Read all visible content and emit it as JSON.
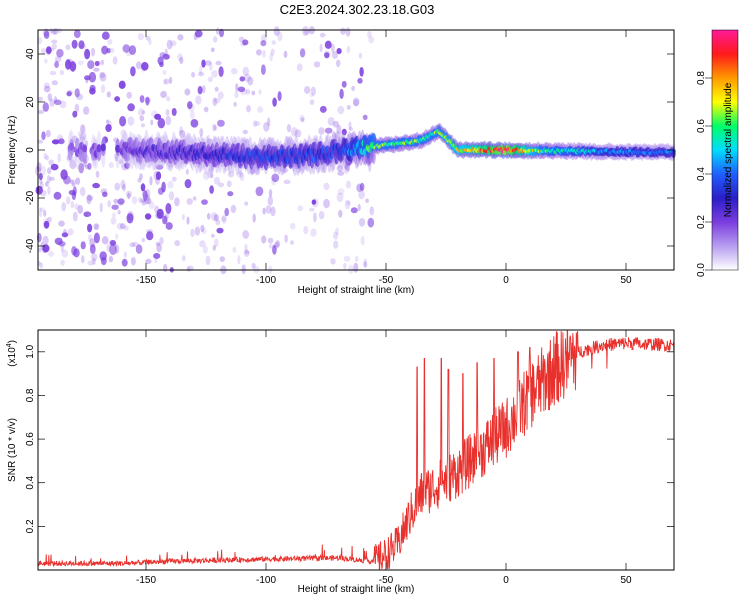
{
  "title": "C2E3.2024.302.23.18.G03",
  "colors": {
    "snr_line": "#e8302c",
    "background_dots": "#7a3dde",
    "colormap": [
      "#ffffff",
      "#b79df0",
      "#7a3dde",
      "#2a1ec8",
      "#1f5fff",
      "#00ddff",
      "#00ff66",
      "#ffff00",
      "#ff9900",
      "#ff1a1a",
      "#ff1a9a"
    ]
  },
  "chart_data": [
    {
      "type": "heatmap",
      "xlabel": "Height of straight line (km)",
      "ylabel": "Frequency (Hz)",
      "xlim": [
        -195,
        70
      ],
      "ylim": [
        -50,
        50
      ],
      "x_ticks": [
        -150,
        -100,
        -50,
        0,
        50
      ],
      "y_ticks": [
        -40,
        -20,
        0,
        20,
        40
      ],
      "colorbar": {
        "label": "Normalized spectral amplitude",
        "range": [
          0,
          1
        ],
        "ticks": [
          "0.0",
          "0.2",
          "0.4",
          "0.6",
          "0.8"
        ],
        "tick_values": [
          0.0,
          0.2,
          0.4,
          0.6,
          0.8
        ]
      },
      "band_center": [
        {
          "x": -195,
          "y": 0
        },
        {
          "x": -150,
          "y": 0
        },
        {
          "x": -120,
          "y": -2
        },
        {
          "x": -100,
          "y": -3
        },
        {
          "x": -80,
          "y": -2
        },
        {
          "x": -60,
          "y": 1
        },
        {
          "x": -50,
          "y": 2
        },
        {
          "x": -35,
          "y": 4
        },
        {
          "x": -28,
          "y": 8
        },
        {
          "x": -20,
          "y": 0
        },
        {
          "x": 0,
          "y": 0
        },
        {
          "x": 30,
          "y": -0.5
        },
        {
          "x": 70,
          "y": -1
        }
      ],
      "band_peak_amplitude": [
        {
          "x": -195,
          "a": 0.15
        },
        {
          "x": -140,
          "a": 0.25
        },
        {
          "x": -100,
          "a": 0.35
        },
        {
          "x": -70,
          "a": 0.35
        },
        {
          "x": -55,
          "a": 0.6
        },
        {
          "x": -30,
          "a": 0.6
        },
        {
          "x": -15,
          "a": 0.75
        },
        {
          "x": 0,
          "a": 0.95
        },
        {
          "x": 15,
          "a": 0.6
        },
        {
          "x": 40,
          "a": 0.45
        },
        {
          "x": 70,
          "a": 0.4
        }
      ]
    },
    {
      "type": "line",
      "xlabel": "Height of straight line (km)",
      "ylabel": "SNR (10 * v/v)",
      "y_multiplier_label": "(x10",
      "y_multiplier_exp": "4",
      "y_multiplier_close": ")",
      "xlim": [
        -195,
        70
      ],
      "ylim": [
        0,
        1.1
      ],
      "x_ticks": [
        -150,
        -100,
        -50,
        0,
        50
      ],
      "y_ticks": [
        0.2,
        0.4,
        0.6,
        0.8,
        1.0
      ],
      "series": [
        {
          "trend": [
            {
              "x": -195,
              "y": 0.03
            },
            {
              "x": -160,
              "y": 0.03
            },
            {
              "x": -140,
              "y": 0.04
            },
            {
              "x": -100,
              "y": 0.05
            },
            {
              "x": -70,
              "y": 0.055
            },
            {
              "x": -55,
              "y": 0.04
            },
            {
              "x": -50,
              "y": 0.07
            },
            {
              "x": -45,
              "y": 0.12
            },
            {
              "x": -40,
              "y": 0.25
            },
            {
              "x": -35,
              "y": 0.35
            },
            {
              "x": -30,
              "y": 0.38
            },
            {
              "x": -20,
              "y": 0.45
            },
            {
              "x": -10,
              "y": 0.55
            },
            {
              "x": 0,
              "y": 0.65
            },
            {
              "x": 10,
              "y": 0.8
            },
            {
              "x": 20,
              "y": 0.92
            },
            {
              "x": 30,
              "y": 1.0
            },
            {
              "x": 40,
              "y": 1.03
            },
            {
              "x": 50,
              "y": 1.04
            },
            {
              "x": 70,
              "y": 1.03
            }
          ],
          "spikes": [
            {
              "x": -37,
              "y": 0.93
            },
            {
              "x": -34,
              "y": 0.97
            },
            {
              "x": -27,
              "y": 0.97
            },
            {
              "x": -24,
              "y": 0.92
            },
            {
              "x": -18,
              "y": 0.9
            },
            {
              "x": -12,
              "y": 0.95
            },
            {
              "x": -5,
              "y": 0.97
            },
            {
              "x": 5,
              "y": 1.0
            },
            {
              "x": 10,
              "y": 1.02
            }
          ]
        }
      ]
    }
  ]
}
